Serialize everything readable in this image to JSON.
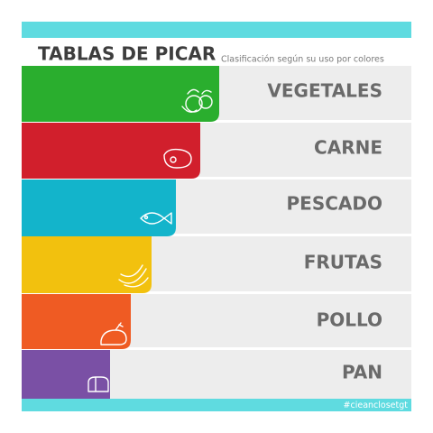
{
  "header": {
    "title": "TABLAS DE PICAR",
    "subtitle": "Clasificación según su uso por colores"
  },
  "rows": [
    {
      "label": "VEGETALES"
    },
    {
      "label": "CARNE"
    },
    {
      "label": "PESCADO"
    },
    {
      "label": "FRUTAS"
    },
    {
      "label": "POLLO"
    },
    {
      "label": "PAN"
    }
  ],
  "footer": {
    "hashtag": "#cieanclosetgt"
  }
}
